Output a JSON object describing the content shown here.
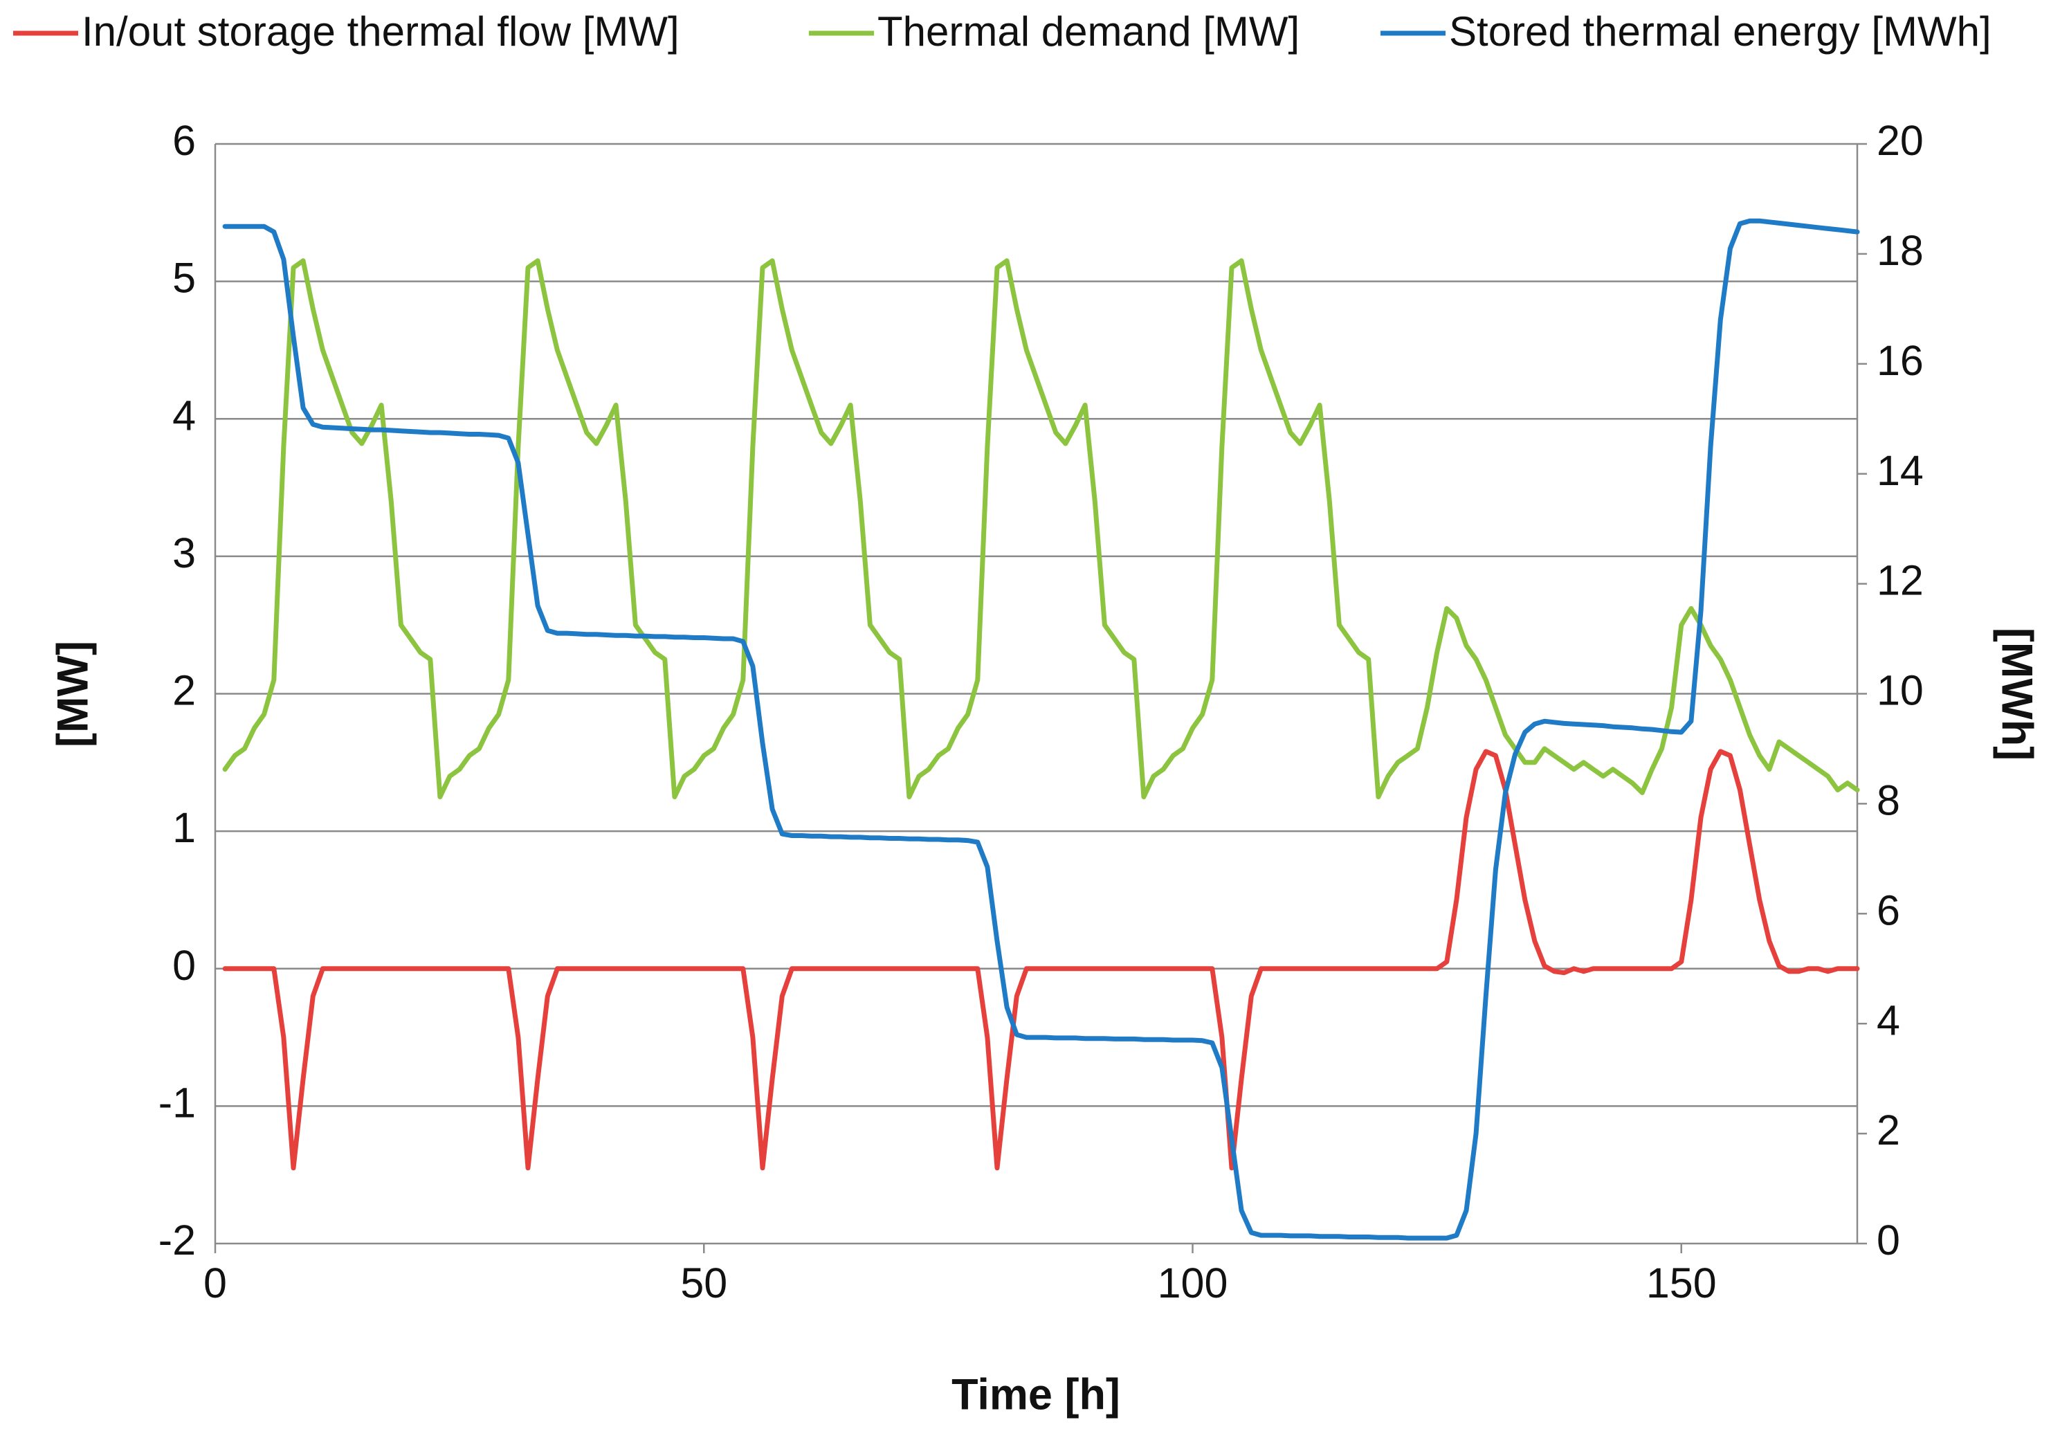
{
  "chart_data": {
    "type": "line",
    "xlabel": "Time [h]",
    "ylabel": "[MW]",
    "y2label": "[MWh]",
    "xlim": [
      0,
      168
    ],
    "xticks": [
      0,
      50,
      100,
      150
    ],
    "ylim": [
      -2,
      6
    ],
    "yticks": [
      -2,
      -1,
      0,
      1,
      2,
      3,
      4,
      5,
      6
    ],
    "y2lim": [
      0,
      20
    ],
    "y2ticks": [
      0,
      2,
      4,
      6,
      8,
      10,
      12,
      14,
      16,
      18,
      20
    ],
    "grid": true,
    "legend": "top",
    "x": [
      1,
      2,
      3,
      4,
      5,
      6,
      7,
      8,
      9,
      10,
      11,
      12,
      13,
      14,
      15,
      16,
      17,
      18,
      19,
      20,
      21,
      22,
      23,
      24,
      25,
      26,
      27,
      28,
      29,
      30,
      31,
      32,
      33,
      34,
      35,
      36,
      37,
      38,
      39,
      40,
      41,
      42,
      43,
      44,
      45,
      46,
      47,
      48,
      49,
      50,
      51,
      52,
      53,
      54,
      55,
      56,
      57,
      58,
      59,
      60,
      61,
      62,
      63,
      64,
      65,
      66,
      67,
      68,
      69,
      70,
      71,
      72,
      73,
      74,
      75,
      76,
      77,
      78,
      79,
      80,
      81,
      82,
      83,
      84,
      85,
      86,
      87,
      88,
      89,
      90,
      91,
      92,
      93,
      94,
      95,
      96,
      97,
      98,
      99,
      100,
      101,
      102,
      103,
      104,
      105,
      106,
      107,
      108,
      109,
      110,
      111,
      112,
      113,
      114,
      115,
      116,
      117,
      118,
      119,
      120,
      121,
      122,
      123,
      124,
      125,
      126,
      127,
      128,
      129,
      130,
      131,
      132,
      133,
      134,
      135,
      136,
      137,
      138,
      139,
      140,
      141,
      142,
      143,
      144,
      145,
      146,
      147,
      148,
      149,
      150,
      151,
      152,
      153,
      154,
      155,
      156,
      157,
      158,
      159,
      160,
      161,
      162,
      163,
      164,
      165,
      166,
      167,
      168
    ],
    "series": [
      {
        "name": "In/out storage thermal flow [MW]",
        "color": "#e5403c",
        "values": [
          0,
          0,
          0,
          0,
          0,
          0,
          -0.5,
          -1.45,
          -0.8,
          -0.2,
          0,
          0,
          0,
          0,
          0,
          0,
          0,
          0,
          0,
          0,
          0,
          0,
          0,
          0,
          0,
          0,
          0,
          0,
          0,
          0,
          -0.5,
          -1.45,
          -0.8,
          -0.2,
          0,
          0,
          0,
          0,
          0,
          0,
          0,
          0,
          0,
          0,
          0,
          0,
          0,
          0,
          0,
          0,
          0,
          0,
          0,
          0,
          -0.5,
          -1.45,
          -0.8,
          -0.2,
          0,
          0,
          0,
          0,
          0,
          0,
          0,
          0,
          0,
          0,
          0,
          0,
          0,
          0,
          0,
          0,
          0,
          0,
          0,
          0,
          -0.5,
          -1.45,
          -0.8,
          -0.2,
          0,
          0,
          0,
          0,
          0,
          0,
          0,
          0,
          0,
          0,
          0,
          0,
          0,
          0,
          0,
          0,
          0,
          0,
          0,
          0,
          -0.5,
          -1.45,
          -0.8,
          -0.2,
          0,
          0,
          0,
          0,
          0,
          0,
          0,
          0,
          0,
          0,
          0,
          0,
          0,
          0,
          0,
          0,
          0,
          0,
          0,
          0.05,
          0.5,
          1.1,
          1.45,
          1.58,
          1.55,
          1.3,
          0.9,
          0.5,
          0.2,
          0.02,
          -0.02,
          -0.03,
          0,
          -0.02,
          0,
          0,
          0,
          0,
          0,
          0,
          0,
          0,
          0,
          0.05,
          0.5,
          1.1,
          1.45,
          1.58,
          1.55,
          1.3,
          0.9,
          0.5,
          0.2,
          0.02,
          -0.02,
          -0.02,
          0,
          0,
          -0.02,
          0,
          0,
          0
        ]
      },
      {
        "name": "Thermal demand [MW]",
        "color": "#8cc43f",
        "values": [
          1.45,
          1.55,
          1.6,
          1.75,
          1.85,
          2.1,
          3.8,
          5.1,
          5.15,
          4.8,
          4.5,
          4.3,
          4.1,
          3.9,
          3.82,
          3.95,
          4.1,
          3.4,
          2.5,
          2.4,
          2.3,
          2.25,
          1.25,
          1.4,
          1.45,
          1.55,
          1.6,
          1.75,
          1.85,
          2.1,
          3.8,
          5.1,
          5.15,
          4.8,
          4.5,
          4.3,
          4.1,
          3.9,
          3.82,
          3.95,
          4.1,
          3.4,
          2.5,
          2.4,
          2.3,
          2.25,
          1.25,
          1.4,
          1.45,
          1.55,
          1.6,
          1.75,
          1.85,
          2.1,
          3.8,
          5.1,
          5.15,
          4.8,
          4.5,
          4.3,
          4.1,
          3.9,
          3.82,
          3.95,
          4.1,
          3.4,
          2.5,
          2.4,
          2.3,
          2.25,
          1.25,
          1.4,
          1.45,
          1.55,
          1.6,
          1.75,
          1.85,
          2.1,
          3.8,
          5.1,
          5.15,
          4.8,
          4.5,
          4.3,
          4.1,
          3.9,
          3.82,
          3.95,
          4.1,
          3.4,
          2.5,
          2.4,
          2.3,
          2.25,
          1.25,
          1.4,
          1.45,
          1.55,
          1.6,
          1.75,
          1.85,
          2.1,
          3.8,
          5.1,
          5.15,
          4.8,
          4.5,
          4.3,
          4.1,
          3.9,
          3.82,
          3.95,
          4.1,
          3.4,
          2.5,
          2.4,
          2.3,
          2.25,
          1.25,
          1.4,
          1.5,
          1.55,
          1.6,
          1.9,
          2.3,
          2.62,
          2.55,
          2.35,
          2.25,
          2.1,
          1.9,
          1.7,
          1.6,
          1.5,
          1.5,
          1.6,
          1.55,
          1.5,
          1.45,
          1.5,
          1.45,
          1.4,
          1.45,
          1.4,
          1.35,
          1.28,
          1.45,
          1.6,
          1.9,
          2.5,
          2.62,
          2.5,
          2.35,
          2.25,
          2.1,
          1.9,
          1.7,
          1.55,
          1.45,
          1.65,
          1.6,
          1.55,
          1.5,
          1.45,
          1.4,
          1.3,
          1.35,
          1.3
        ]
      },
      {
        "name": "Stored thermal energy [MWh]",
        "color": "#1f7bc6",
        "axis": "y2",
        "values": [
          18.5,
          18.5,
          18.5,
          18.5,
          18.5,
          18.4,
          17.9,
          16.5,
          15.2,
          14.9,
          14.85,
          14.84,
          14.83,
          14.82,
          14.81,
          14.8,
          14.8,
          14.79,
          14.78,
          14.77,
          14.76,
          14.75,
          14.75,
          14.74,
          14.73,
          14.72,
          14.72,
          14.71,
          14.7,
          14.65,
          14.2,
          12.9,
          11.6,
          11.15,
          11.1,
          11.1,
          11.09,
          11.08,
          11.08,
          11.07,
          11.06,
          11.06,
          11.05,
          11.05,
          11.04,
          11.04,
          11.03,
          11.03,
          11.02,
          11.02,
          11.01,
          11.0,
          11.0,
          10.95,
          10.5,
          9.1,
          7.9,
          7.45,
          7.42,
          7.42,
          7.41,
          7.41,
          7.4,
          7.4,
          7.39,
          7.39,
          7.38,
          7.38,
          7.37,
          7.37,
          7.36,
          7.36,
          7.35,
          7.35,
          7.34,
          7.34,
          7.33,
          7.3,
          6.85,
          5.5,
          4.3,
          3.8,
          3.75,
          3.75,
          3.75,
          3.74,
          3.74,
          3.74,
          3.73,
          3.73,
          3.73,
          3.72,
          3.72,
          3.72,
          3.71,
          3.71,
          3.71,
          3.7,
          3.7,
          3.7,
          3.69,
          3.65,
          3.2,
          1.9,
          0.6,
          0.2,
          0.15,
          0.15,
          0.15,
          0.14,
          0.14,
          0.14,
          0.13,
          0.13,
          0.13,
          0.12,
          0.12,
          0.12,
          0.11,
          0.11,
          0.11,
          0.1,
          0.1,
          0.1,
          0.1,
          0.1,
          0.15,
          0.6,
          2.0,
          4.5,
          6.8,
          8.2,
          8.9,
          9.3,
          9.45,
          9.5,
          9.48,
          9.46,
          9.45,
          9.44,
          9.43,
          9.42,
          9.4,
          9.39,
          9.38,
          9.36,
          9.35,
          9.33,
          9.31,
          9.3,
          9.5,
          11.5,
          14.5,
          16.8,
          18.1,
          18.55,
          18.6,
          18.6,
          18.58,
          18.56,
          18.54,
          18.52,
          18.5,
          18.48,
          18.46,
          18.44,
          18.42,
          18.4
        ]
      }
    ]
  }
}
